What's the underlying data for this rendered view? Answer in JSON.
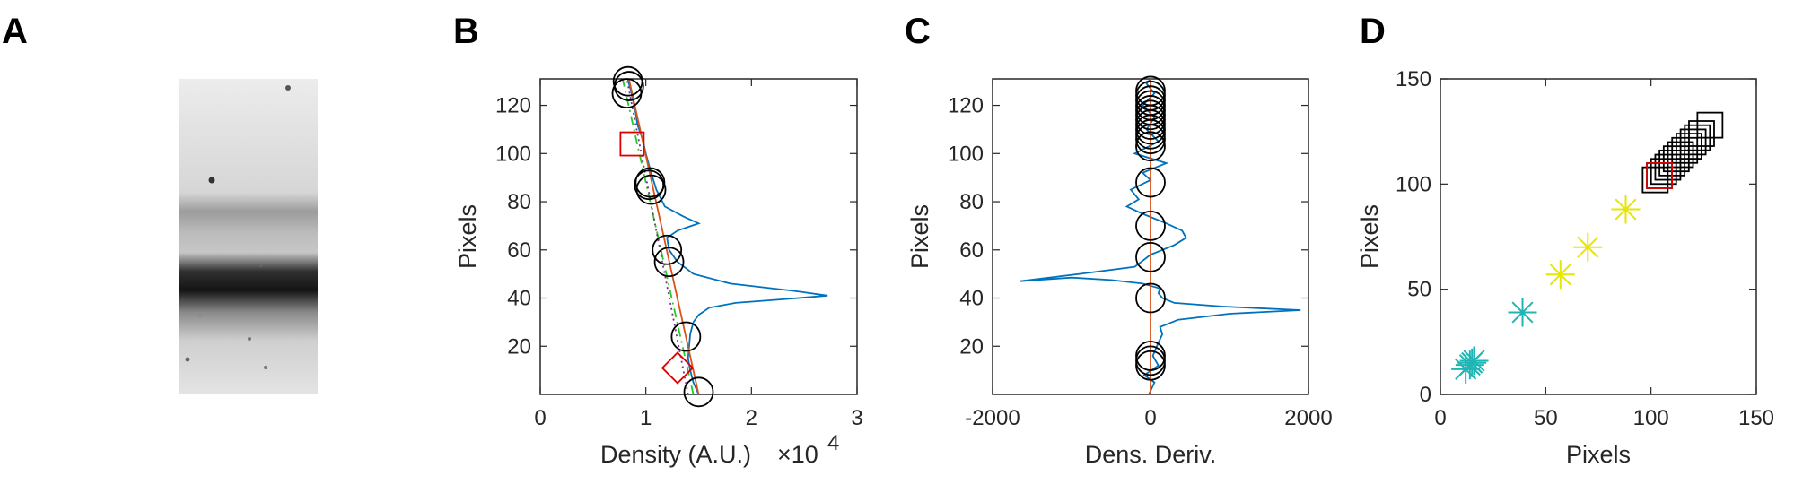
{
  "panels": {
    "A": "A",
    "B": "B",
    "C": "C",
    "D": "D"
  },
  "colors": {
    "profile": "#0072BD",
    "fit": "#D95319",
    "dash_green": "#22cc22",
    "dash_purple": "#7E2F8E",
    "marker_red": "#e00000",
    "cyan": "#1fb5b5",
    "yellow": "#e6e600",
    "black": "#000000"
  },
  "chart_data": [
    {
      "panel": "B",
      "type": "line",
      "xlabel": "Density (A.U.)",
      "xlabel_multiplier": "×10",
      "xlabel_exponent": "4",
      "ylabel": "Pixels",
      "xlim": [
        0,
        3
      ],
      "ylim": [
        0,
        131
      ],
      "xticks": [
        0,
        1,
        2,
        3
      ],
      "xtick_labels": [
        "0",
        "1",
        "2",
        "3"
      ],
      "yticks": [
        20,
        40,
        60,
        80,
        100,
        120
      ],
      "ytick_labels": [
        "20",
        "40",
        "60",
        "80",
        "100",
        "120"
      ],
      "profile": {
        "x": [
          1.5,
          1.45,
          1.42,
          1.4,
          1.41,
          1.42,
          1.45,
          1.5,
          1.6,
          1.85,
          2.3,
          2.72,
          2.4,
          1.8,
          1.45,
          1.3,
          1.22,
          1.2,
          1.3,
          1.5,
          1.35,
          1.18,
          1.1,
          1.05,
          1.0,
          0.97,
          0.92,
          0.9,
          0.88,
          0.86,
          0.84,
          0.83
        ],
        "y": [
          0,
          5,
          10,
          15,
          20,
          25,
          30,
          33,
          36,
          38,
          39.5,
          41,
          43,
          46,
          50,
          55,
          60,
          65,
          68,
          71,
          74,
          78,
          85,
          92,
          100,
          106,
          112,
          118,
          122,
          126,
          129,
          131
        ]
      },
      "fit_line": {
        "x": [
          1.5,
          0.84
        ],
        "y": [
          0,
          131
        ]
      },
      "dash_line_green": {
        "x": [
          1.45,
          0.78
        ],
        "y": [
          0,
          131
        ]
      },
      "dash_line_purple": {
        "x": [
          1.4,
          0.82
        ],
        "y": [
          0,
          131
        ]
      },
      "circles": {
        "x": [
          1.5,
          1.38,
          1.22,
          1.2,
          1.05,
          1.03,
          1.04,
          0.82,
          0.84,
          0.83
        ],
        "y": [
          1,
          24,
          55,
          60,
          85,
          87,
          88,
          125,
          128,
          130
        ]
      },
      "square": {
        "x": [
          0.87
        ],
        "y": [
          104
        ]
      },
      "diamond": {
        "x": [
          1.3
        ],
        "y": [
          11
        ]
      }
    },
    {
      "panel": "C",
      "type": "line",
      "xlabel": "Dens. Deriv.",
      "ylabel": "Pixels",
      "xlim": [
        -2000,
        2000
      ],
      "ylim": [
        0,
        131
      ],
      "xticks": [
        -2000,
        0,
        2000
      ],
      "xtick_labels": [
        "-2000",
        "0",
        "2000"
      ],
      "yticks": [
        20,
        40,
        60,
        80,
        100,
        120
      ],
      "ytick_labels": [
        "20",
        "40",
        "60",
        "80",
        "100",
        "120"
      ],
      "derivative": {
        "x": [
          -20,
          50,
          -80,
          100,
          30,
          80,
          150,
          120,
          350,
          1000,
          1900,
          900,
          300,
          150,
          100,
          120,
          -100,
          -500,
          -1000,
          -1650,
          -900,
          -200,
          0,
          300,
          450,
          400,
          200,
          -100,
          -300,
          -150,
          -250,
          0,
          -100,
          200,
          -200,
          100,
          -50,
          50,
          -100,
          50,
          -50,
          0
        ],
        "y": [
          0,
          5,
          8,
          12,
          16,
          20,
          25,
          28,
          31,
          33.5,
          35,
          36.5,
          38,
          40,
          42,
          44,
          46,
          47.5,
          48.5,
          47,
          50,
          53,
          58,
          62,
          65,
          68,
          71,
          75,
          78,
          81,
          85,
          89,
          92,
          96,
          100,
          105,
          110,
          115,
          120,
          125,
          129,
          131
        ]
      },
      "vline": {
        "x": [
          0,
          0
        ],
        "y": [
          0,
          131
        ]
      },
      "circles": {
        "x": [
          0,
          0,
          0,
          0,
          0,
          0,
          0,
          0,
          0,
          0,
          0,
          0,
          0,
          0,
          0,
          0,
          0,
          0,
          0
        ],
        "y": [
          12,
          14,
          16,
          40,
          57,
          70,
          88,
          103,
          106,
          108,
          110,
          112,
          114,
          116,
          118,
          120,
          122,
          124,
          126
        ]
      }
    },
    {
      "panel": "D",
      "type": "scatter",
      "xlabel": "Pixels",
      "ylabel": "Pixels",
      "xlim": [
        0,
        150
      ],
      "ylim": [
        0,
        150
      ],
      "xticks": [
        0,
        50,
        100,
        150
      ],
      "xtick_labels": [
        "0",
        "50",
        "100",
        "150"
      ],
      "yticks": [
        0,
        50,
        100,
        150
      ],
      "ytick_labels": [
        "0",
        "50",
        "100",
        "150"
      ],
      "cyan_stars": {
        "x": [
          12,
          14,
          15,
          16,
          39
        ],
        "y": [
          12,
          14,
          15,
          16,
          39
        ]
      },
      "yellow_stars": {
        "x": [
          57,
          70,
          88
        ],
        "y": [
          57,
          70,
          88
        ]
      },
      "black_squares": {
        "x": [
          102,
          104,
          106,
          108,
          110,
          112,
          114,
          116,
          118,
          120,
          122,
          124,
          128
        ],
        "y": [
          102,
          104,
          106,
          108,
          110,
          112,
          114,
          116,
          118,
          120,
          122,
          124,
          128
        ]
      },
      "red_square": {
        "x": [
          104
        ],
        "y": [
          104
        ]
      }
    }
  ]
}
